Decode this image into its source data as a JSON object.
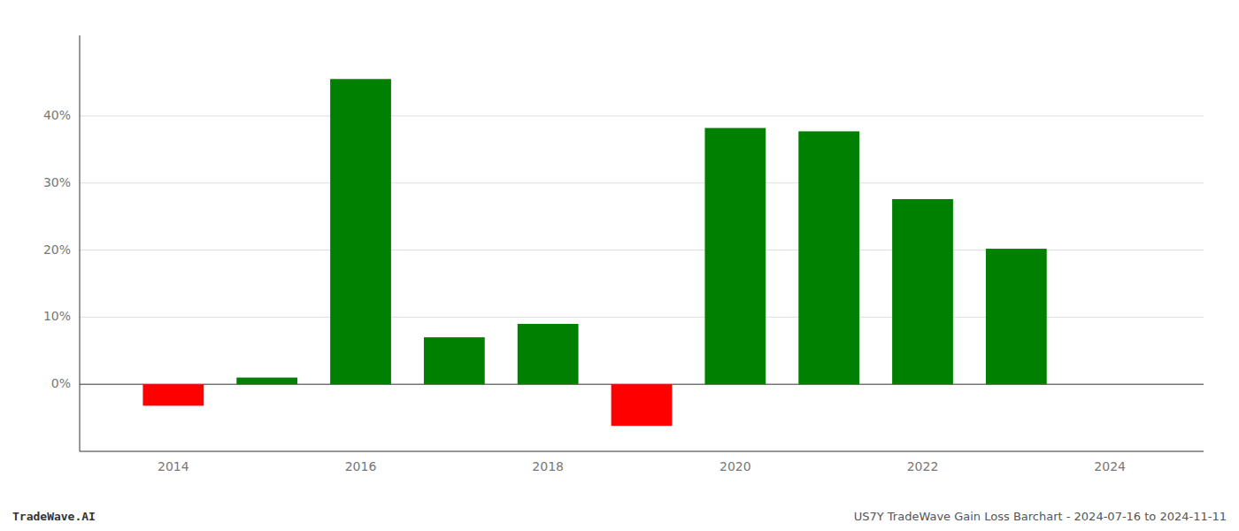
{
  "chart_data": {
    "type": "bar",
    "x": [
      2014,
      2015,
      2016,
      2017,
      2018,
      2019,
      2020,
      2021,
      2022,
      2023
    ],
    "values": [
      -3.2,
      1.0,
      45.5,
      7.0,
      9.0,
      -6.2,
      38.2,
      37.7,
      27.6,
      20.2
    ],
    "colors": [
      "#ff0000",
      "#008000",
      "#008000",
      "#008000",
      "#008000",
      "#ff0000",
      "#008000",
      "#008000",
      "#008000",
      "#008000"
    ],
    "xlim": [
      2013.0,
      2025.0
    ],
    "xticks": [
      2014,
      2016,
      2018,
      2020,
      2022,
      2024
    ],
    "ylim": [
      -10,
      52
    ],
    "yticks": [
      {
        "value": 0,
        "label": "0%"
      },
      {
        "value": 10,
        "label": "10%"
      },
      {
        "value": 20,
        "label": "20%"
      },
      {
        "value": 30,
        "label": "30%"
      },
      {
        "value": 40,
        "label": "40%"
      }
    ],
    "grid": true,
    "annotations": [
      "TradeWave.AI",
      "US7Y TradeWave Gain Loss Barchart - 2024-07-16 to 2024-11-11"
    ]
  }
}
